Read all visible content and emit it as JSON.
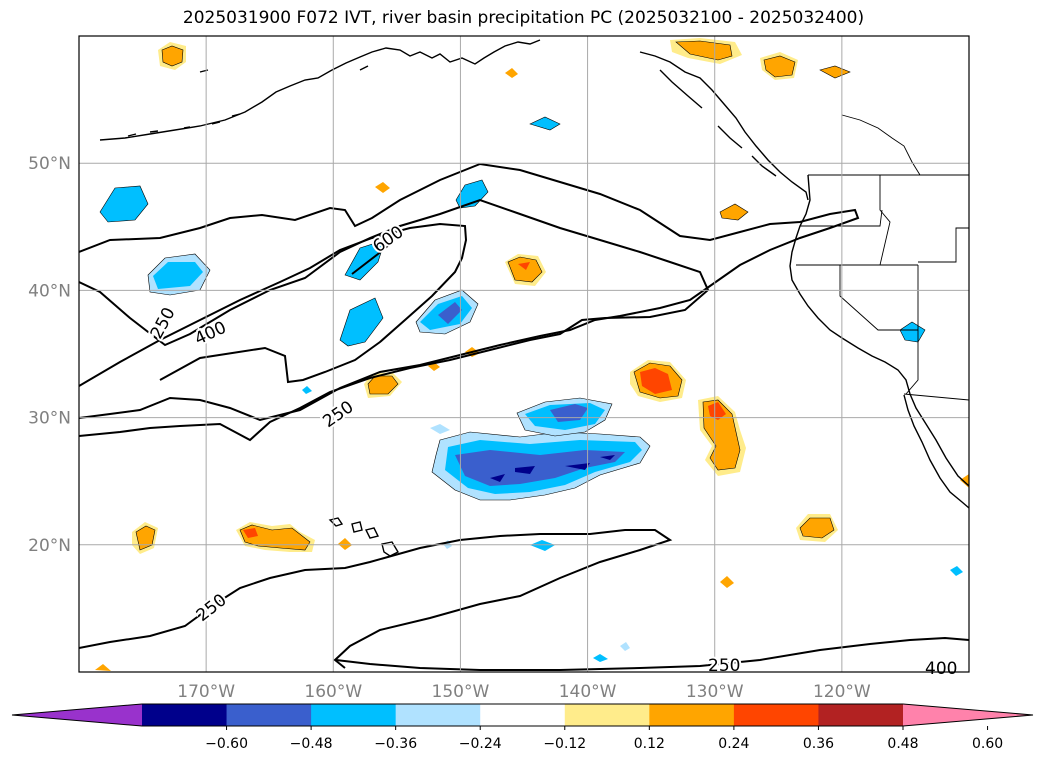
{
  "title": "2025031900 F072 IVT, river basin precipitation PC (2025032100 - 2025032400)",
  "map": {
    "lon_range": [
      -180,
      -110
    ],
    "lat_range": [
      10,
      60
    ],
    "lat_ticks": [
      {
        "value": 50,
        "label": "50°N"
      },
      {
        "value": 40,
        "label": "40°N"
      },
      {
        "value": 30,
        "label": "30°N"
      },
      {
        "value": 20,
        "label": "20°N"
      }
    ],
    "lon_ticks": [
      {
        "value": -170,
        "label": "170°W"
      },
      {
        "value": -160,
        "label": "160°W"
      },
      {
        "value": -150,
        "label": "150°W"
      },
      {
        "value": -140,
        "label": "140°W"
      },
      {
        "value": -130,
        "label": "130°W"
      },
      {
        "value": -120,
        "label": "120°W"
      }
    ],
    "grid": true,
    "ivt_contour_labels": [
      "250",
      "400",
      "600",
      "250",
      "250",
      "250",
      "400"
    ]
  },
  "colorbar": {
    "ticks": [
      "−0.60",
      "−0.48",
      "−0.36",
      "−0.24",
      "−0.12",
      "0.12",
      "0.24",
      "0.36",
      "0.48",
      "0.60"
    ],
    "colors": [
      "#9932cc",
      "#00008b",
      "#3a5fcd",
      "#00bfff",
      "#b0e2ff",
      "#ffffff",
      "#ffec8b",
      "#ffa500",
      "#ff4500",
      "#b22222",
      "#ff82ab"
    ]
  }
}
